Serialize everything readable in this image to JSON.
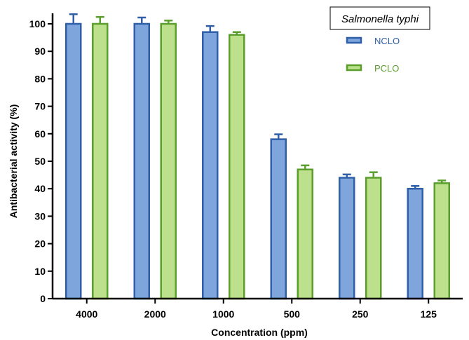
{
  "chart_data": {
    "type": "bar",
    "title": "",
    "legend_title": "Salmonella typhi",
    "legend_position": "top-right",
    "xlabel": "Concentration (ppm)",
    "ylabel": "Antibacterial activity (%)",
    "ylim": [
      0,
      100
    ],
    "yticks": [
      0,
      10,
      20,
      30,
      40,
      50,
      60,
      70,
      80,
      90,
      100
    ],
    "grid": false,
    "categories": [
      "4000",
      "2000",
      "1000",
      "500",
      "250",
      "125"
    ],
    "series": [
      {
        "name": "NCLO",
        "values": [
          100,
          100,
          97,
          58,
          44,
          40
        ],
        "errors": [
          3.5,
          2.3,
          2.2,
          1.8,
          1.2,
          1.0
        ],
        "fill": "#7ea6dc",
        "stroke": "#2f5fa8"
      },
      {
        "name": "PCLO",
        "values": [
          100,
          100,
          96,
          47,
          44,
          42
        ],
        "errors": [
          2.5,
          1.2,
          1.0,
          1.5,
          2.0,
          1.0
        ],
        "fill": "#bde08c",
        "stroke": "#5a9e2c"
      }
    ]
  }
}
